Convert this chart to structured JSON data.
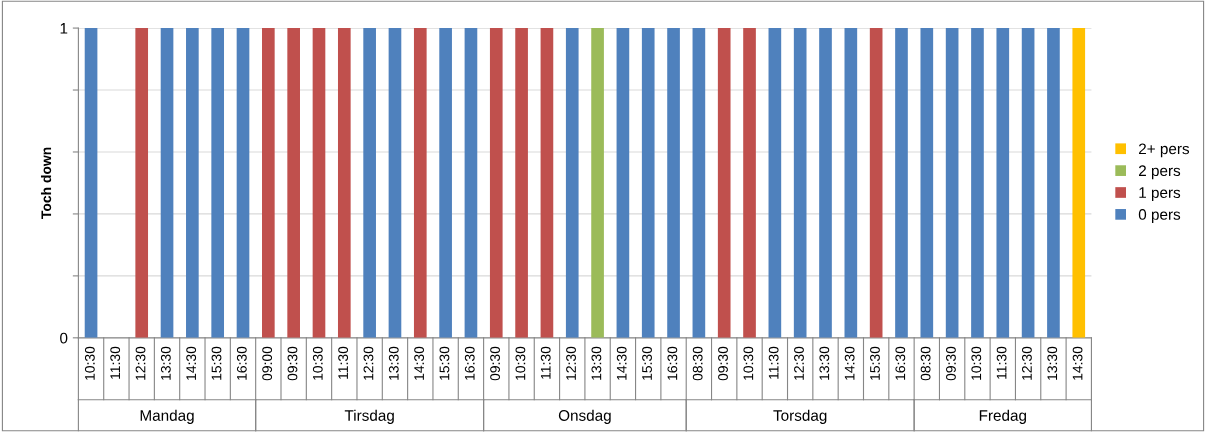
{
  "chart_data": {
    "type": "bar",
    "stacked": true,
    "ylabel": "Toch down",
    "categories": [
      "10:30",
      "11:30",
      "12:30",
      "13:30",
      "14:30",
      "15:30",
      "16:30",
      "09:00",
      "09:30",
      "10:30",
      "11:30",
      "12:30",
      "13:30",
      "14:30",
      "15:30",
      "16:30",
      "09:30",
      "10:30",
      "11:30",
      "12:30",
      "13:30",
      "14:30",
      "15:30",
      "16:30",
      "08:30",
      "09:30",
      "10:30",
      "11:30",
      "12:30",
      "13:30",
      "14:30",
      "15:30",
      "16:30",
      "08:30",
      "09:30",
      "10:30",
      "11:30",
      "12:30",
      "13:30",
      "14:30"
    ],
    "series": [
      {
        "name": "0 pers",
        "color": "#4f81bd",
        "values": [
          1,
          null,
          null,
          1,
          1,
          1,
          1,
          null,
          null,
          null,
          null,
          1,
          1,
          null,
          1,
          1,
          null,
          null,
          null,
          1,
          null,
          1,
          1,
          1,
          1,
          null,
          null,
          1,
          1,
          1,
          1,
          null,
          1,
          1,
          1,
          1,
          1,
          1,
          1,
          null
        ]
      },
      {
        "name": "1 pers",
        "color": "#c0504d",
        "values": [
          null,
          null,
          1,
          null,
          null,
          null,
          null,
          1,
          1,
          1,
          1,
          null,
          null,
          1,
          null,
          null,
          1,
          1,
          1,
          null,
          null,
          null,
          null,
          null,
          null,
          1,
          1,
          null,
          null,
          null,
          null,
          1,
          null,
          null,
          null,
          null,
          null,
          null,
          null,
          null
        ]
      },
      {
        "name": "2 pers",
        "color": "#9bbb59",
        "values": [
          null,
          null,
          null,
          null,
          null,
          null,
          null,
          null,
          null,
          null,
          null,
          null,
          null,
          null,
          null,
          null,
          null,
          null,
          null,
          null,
          1,
          null,
          null,
          null,
          null,
          null,
          null,
          null,
          null,
          null,
          null,
          null,
          null,
          null,
          null,
          null,
          null,
          null,
          null,
          null
        ]
      },
      {
        "name": "2+ pers",
        "color": "#ffc000",
        "values": [
          null,
          null,
          null,
          null,
          null,
          null,
          null,
          null,
          null,
          null,
          null,
          null,
          null,
          null,
          null,
          null,
          null,
          null,
          null,
          null,
          null,
          null,
          null,
          null,
          null,
          null,
          null,
          null,
          null,
          null,
          null,
          null,
          null,
          null,
          null,
          null,
          null,
          null,
          null,
          1
        ]
      }
    ],
    "annotations": [
      "Mandag",
      "Tirsdag",
      "Onsdag",
      "Torsdag",
      "Fredag"
    ],
    "ylim": [
      0,
      1
    ],
    "yticks": [
      0,
      {
        "value": 0.2,
        "label": null
      },
      {
        "value": 0.4,
        "label": null
      },
      {
        "value": 0.6,
        "label": null
      },
      {
        "value": 0.8,
        "label": null
      },
      1
    ],
    "grid": "y",
    "legend": "right"
  }
}
